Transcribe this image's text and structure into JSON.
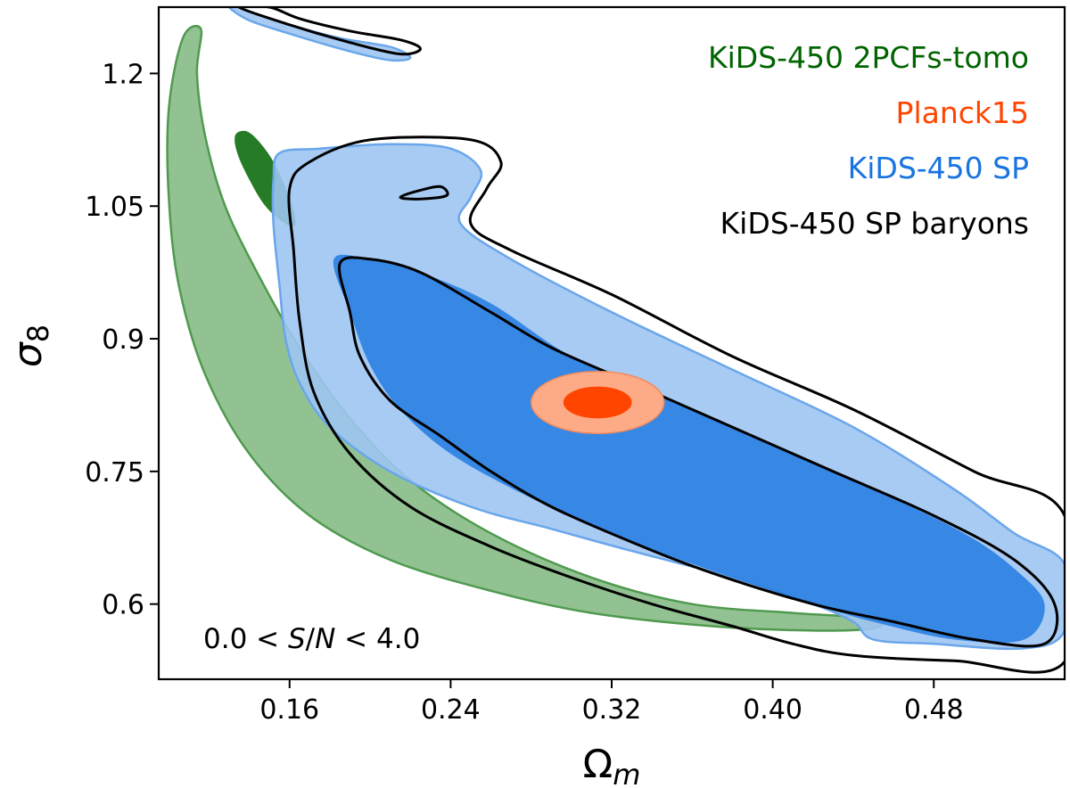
{
  "chart_data": {
    "type": "contour",
    "title": "",
    "xlabel": "Ω",
    "xlabel_sub": "m",
    "ylabel": "σ",
    "ylabel_sub": "8",
    "xlim": [
      0.095,
      0.545
    ],
    "ylim": [
      0.515,
      1.275
    ],
    "xticks": [
      0.16,
      0.24,
      0.32,
      0.4,
      0.48
    ],
    "xtick_labels": [
      "0.16",
      "0.24",
      "0.32",
      "0.40",
      "0.48"
    ],
    "yticks": [
      0.6,
      0.75,
      0.9,
      1.05,
      1.2
    ],
    "ytick_labels": [
      "0.6",
      "0.75",
      "0.9",
      "1.05",
      "1.2"
    ],
    "grid": false,
    "legend_position": "top-right",
    "annotation": {
      "parts": [
        "0.0 < ",
        "S",
        "/",
        "N",
        " < 4.0"
      ],
      "position": "bottom-left"
    },
    "series": [
      {
        "name": "KiDS-450 2PCFs-tomo",
        "color": "#006400",
        "style": "filled",
        "contours": [
          {
            "level": "outer",
            "fill": "#7fb77f",
            "points": [
              [
                0.116,
                1.25
              ],
              [
                0.114,
                1.2
              ],
              [
                0.118,
                1.13
              ],
              [
                0.128,
                1.05
              ],
              [
                0.145,
                0.97
              ],
              [
                0.165,
                0.89
              ],
              [
                0.19,
                0.81
              ],
              [
                0.22,
                0.74
              ],
              [
                0.26,
                0.68
              ],
              [
                0.31,
                0.63
              ],
              [
                0.36,
                0.6
              ],
              [
                0.41,
                0.59
              ],
              [
                0.445,
                0.585
              ],
              [
                0.455,
                0.58
              ],
              [
                0.448,
                0.572
              ],
              [
                0.42,
                0.57
              ],
              [
                0.37,
                0.575
              ],
              [
                0.31,
                0.59
              ],
              [
                0.26,
                0.615
              ],
              [
                0.21,
                0.65
              ],
              [
                0.17,
                0.7
              ],
              [
                0.14,
                0.77
              ],
              [
                0.118,
                0.86
              ],
              [
                0.105,
                0.96
              ],
              [
                0.1,
                1.06
              ],
              [
                0.1,
                1.16
              ],
              [
                0.107,
                1.24
              ]
            ]
          },
          {
            "level": "inner",
            "fill": "#006400",
            "points": [
              [
                0.138,
                1.135
              ],
              [
                0.144,
                1.125
              ],
              [
                0.152,
                1.1
              ],
              [
                0.16,
                1.06
              ],
              [
                0.163,
                1.03
              ],
              [
                0.158,
                1.03
              ],
              [
                0.148,
                1.05
              ],
              [
                0.14,
                1.08
              ],
              [
                0.134,
                1.11
              ],
              [
                0.133,
                1.13
              ]
            ]
          }
        ]
      },
      {
        "name": "Planck15",
        "color": "#ff4500",
        "style": "filled",
        "contours": [
          {
            "level": "outer",
            "fill": "#fcab86",
            "ellipse": {
              "cx": 0.313,
              "cy": 0.828,
              "rx": 0.033,
              "ry": 0.035
            }
          },
          {
            "level": "inner",
            "fill": "#ff4500",
            "ellipse": {
              "cx": 0.313,
              "cy": 0.828,
              "rx": 0.017,
              "ry": 0.018
            }
          }
        ]
      },
      {
        "name": "KiDS-450 SP",
        "color": "#1874e0",
        "style": "filled",
        "contours": [
          {
            "level": "outer",
            "fill": "#9ec5f2",
            "points": [
              [
                0.155,
                1.11
              ],
              [
                0.175,
                1.115
              ],
              [
                0.21,
                1.12
              ],
              [
                0.24,
                1.115
              ],
              [
                0.255,
                1.09
              ],
              [
                0.25,
                1.06
              ],
              [
                0.245,
                1.03
              ],
              [
                0.27,
                0.99
              ],
              [
                0.32,
                0.93
              ],
              [
                0.38,
                0.865
              ],
              [
                0.44,
                0.8
              ],
              [
                0.49,
                0.73
              ],
              [
                0.52,
                0.68
              ],
              [
                0.545,
                0.645
              ],
              [
                0.545,
                0.57
              ],
              [
                0.525,
                0.55
              ],
              [
                0.48,
                0.555
              ],
              [
                0.45,
                0.56
              ],
              [
                0.44,
                0.58
              ],
              [
                0.42,
                0.6
              ],
              [
                0.38,
                0.63
              ],
              [
                0.33,
                0.66
              ],
              [
                0.29,
                0.685
              ],
              [
                0.25,
                0.71
              ],
              [
                0.21,
                0.75
              ],
              [
                0.18,
                0.8
              ],
              [
                0.165,
                0.85
              ],
              [
                0.158,
                0.9
              ],
              [
                0.155,
                0.96
              ],
              [
                0.152,
                1.03
              ],
              [
                0.152,
                1.08
              ]
            ]
          },
          {
            "level": "outer",
            "fill": "#9ec5f2",
            "points": [
              [
                0.13,
                1.275
              ],
              [
                0.14,
                1.26
              ],
              [
                0.16,
                1.245
              ],
              [
                0.19,
                1.225
              ],
              [
                0.21,
                1.215
              ],
              [
                0.22,
                1.218
              ],
              [
                0.21,
                1.23
              ],
              [
                0.185,
                1.24
              ],
              [
                0.16,
                1.255
              ],
              [
                0.14,
                1.27
              ],
              [
                0.135,
                1.275
              ]
            ]
          },
          {
            "level": "inner",
            "fill": "#2a7fe3",
            "points": [
              [
                0.182,
                0.99
              ],
              [
                0.2,
                0.99
              ],
              [
                0.225,
                0.975
              ],
              [
                0.26,
                0.94
              ],
              [
                0.3,
                0.88
              ],
              [
                0.35,
                0.83
              ],
              [
                0.4,
                0.78
              ],
              [
                0.45,
                0.73
              ],
              [
                0.495,
                0.68
              ],
              [
                0.52,
                0.64
              ],
              [
                0.535,
                0.6
              ],
              [
                0.525,
                0.56
              ],
              [
                0.49,
                0.56
              ],
              [
                0.45,
                0.58
              ],
              [
                0.42,
                0.6
              ],
              [
                0.38,
                0.63
              ],
              [
                0.33,
                0.67
              ],
              [
                0.28,
                0.72
              ],
              [
                0.24,
                0.77
              ],
              [
                0.215,
                0.82
              ],
              [
                0.2,
                0.87
              ],
              [
                0.19,
                0.93
              ]
            ]
          }
        ]
      },
      {
        "name": "KiDS-450 SP baryons",
        "color": "#000000",
        "style": "lines",
        "contours": [
          {
            "level": "outer",
            "points": [
              [
                0.16,
                1.07
              ],
              [
                0.17,
                1.1
              ],
              [
                0.2,
                1.125
              ],
              [
                0.25,
                1.125
              ],
              [
                0.265,
                1.1
              ],
              [
                0.258,
                1.07
              ],
              [
                0.25,
                1.03
              ],
              [
                0.27,
                1.0
              ],
              [
                0.32,
                0.95
              ],
              [
                0.38,
                0.88
              ],
              [
                0.44,
                0.82
              ],
              [
                0.5,
                0.75
              ],
              [
                0.545,
                0.7
              ],
              [
                0.545,
                0.535
              ],
              [
                0.49,
                0.536
              ],
              [
                0.44,
                0.542
              ],
              [
                0.41,
                0.555
              ],
              [
                0.38,
                0.575
              ],
              [
                0.34,
                0.6
              ],
              [
                0.3,
                0.63
              ],
              [
                0.26,
                0.665
              ],
              [
                0.22,
                0.71
              ],
              [
                0.19,
                0.77
              ],
              [
                0.172,
                0.84
              ],
              [
                0.165,
                0.92
              ],
              [
                0.162,
                1.0
              ]
            ]
          },
          {
            "level": "outer",
            "points": [
              [
                0.135,
                1.275
              ],
              [
                0.16,
                1.255
              ],
              [
                0.19,
                1.235
              ],
              [
                0.215,
                1.222
              ],
              [
                0.225,
                1.228
              ],
              [
                0.215,
                1.238
              ],
              [
                0.19,
                1.248
              ],
              [
                0.165,
                1.262
              ],
              [
                0.15,
                1.275
              ]
            ]
          },
          {
            "level": "outer",
            "points": [
              [
                0.215,
                1.06
              ],
              [
                0.225,
                1.068
              ],
              [
                0.235,
                1.072
              ],
              [
                0.238,
                1.062
              ],
              [
                0.225,
                1.058
              ]
            ]
          },
          {
            "level": "inner",
            "points": [
              [
                0.185,
                0.985
              ],
              [
                0.2,
                0.99
              ],
              [
                0.225,
                0.975
              ],
              [
                0.26,
                0.93
              ],
              [
                0.29,
                0.89
              ],
              [
                0.33,
                0.85
              ],
              [
                0.38,
                0.8
              ],
              [
                0.43,
                0.75
              ],
              [
                0.48,
                0.7
              ],
              [
                0.52,
                0.65
              ],
              [
                0.54,
                0.6
              ],
              [
                0.535,
                0.555
              ],
              [
                0.5,
                0.56
              ],
              [
                0.46,
                0.58
              ],
              [
                0.42,
                0.6
              ],
              [
                0.37,
                0.635
              ],
              [
                0.33,
                0.67
              ],
              [
                0.29,
                0.71
              ],
              [
                0.26,
                0.75
              ],
              [
                0.235,
                0.79
              ],
              [
                0.21,
                0.83
              ],
              [
                0.195,
                0.88
              ],
              [
                0.19,
                0.93
              ]
            ]
          }
        ]
      }
    ]
  }
}
